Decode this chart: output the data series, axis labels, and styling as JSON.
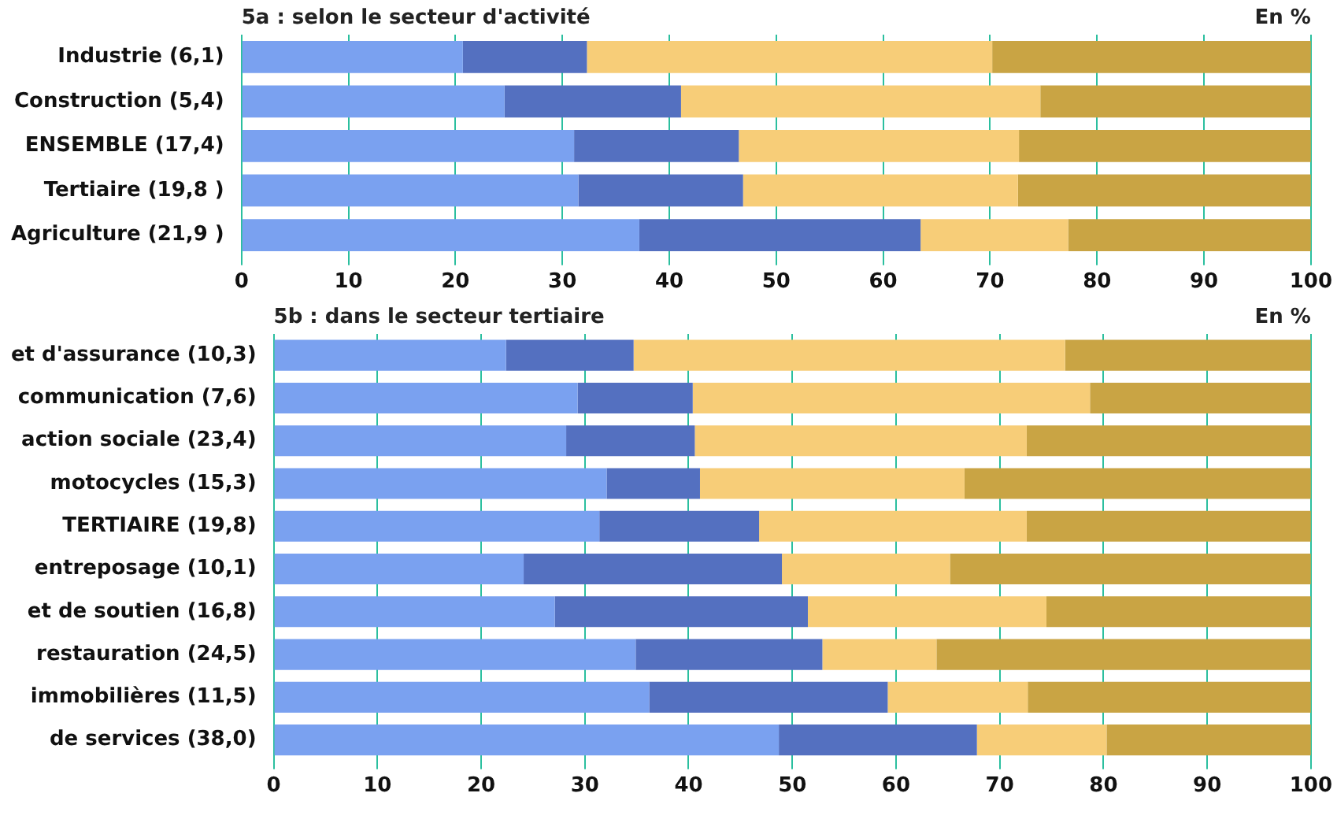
{
  "chart_data": [
    {
      "type": "bar",
      "orientation": "horizontal",
      "stacked": true,
      "title": "5a : selon le secteur d'activité",
      "annotations": [
        "En %"
      ],
      "categories": [
        "Industrie (6,1)",
        "Construction (5,4)",
        "ENSEMBLE (17,4)",
        "Tertiaire (19,8 )",
        "Agriculture (21,9 )"
      ],
      "xlim": [
        0,
        100
      ],
      "xticks": [
        0,
        10,
        20,
        30,
        40,
        50,
        60,
        70,
        80,
        90,
        100
      ],
      "grid": "x",
      "legend": false,
      "series": [
        {
          "color": "#7aa1f0",
          "values": [
            20.7,
            24.6,
            31.1,
            31.5,
            37.2
          ]
        },
        {
          "color": "#5470c0",
          "values": [
            11.6,
            16.5,
            15.4,
            15.4,
            26.3
          ]
        },
        {
          "color": "#f7cd78",
          "values": [
            37.9,
            33.6,
            26.2,
            25.7,
            13.8
          ]
        },
        {
          "color": "#c9a444",
          "values": [
            29.8,
            25.3,
            27.3,
            27.4,
            22.7
          ]
        }
      ]
    },
    {
      "type": "bar",
      "orientation": "horizontal",
      "stacked": true,
      "title": "5b : dans le secteur tertiaire",
      "annotations": [
        "En %"
      ],
      "categories": [
        "et d'assurance (10,3)",
        "communication (7,6)",
        "action sociale (23,4)",
        "motocycles (15,3)",
        "TERTIAIRE (19,8)",
        "entreposage (10,1)",
        "et de soutien (16,8)",
        "restauration (24,5)",
        "immobilières (11,5)",
        "de services (38,0)"
      ],
      "xlim": [
        0,
        100
      ],
      "xticks": [
        0,
        10,
        20,
        30,
        40,
        50,
        60,
        70,
        80,
        90,
        100
      ],
      "grid": "x",
      "legend": false,
      "series": [
        {
          "color": "#7aa1f0",
          "values": [
            22.4,
            29.3,
            28.2,
            32.1,
            31.4,
            24.1,
            27.1,
            34.9,
            36.2,
            48.7
          ]
        },
        {
          "color": "#5470c0",
          "values": [
            12.3,
            11.1,
            12.4,
            9.0,
            15.4,
            24.9,
            24.4,
            18.0,
            23.0,
            19.1
          ]
        },
        {
          "color": "#f7cd78",
          "values": [
            41.6,
            38.3,
            32.0,
            25.5,
            25.8,
            16.2,
            23.0,
            11.0,
            13.5,
            12.5
          ]
        },
        {
          "color": "#c9a444",
          "values": [
            23.7,
            21.3,
            27.4,
            33.4,
            27.4,
            34.8,
            25.5,
            36.1,
            27.3,
            19.7
          ]
        }
      ]
    }
  ]
}
